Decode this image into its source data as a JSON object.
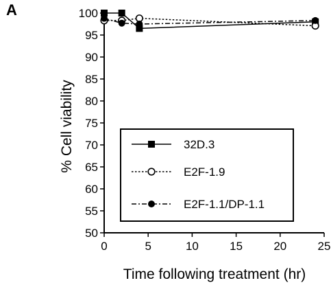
{
  "panel_label": "A",
  "chart_data": {
    "type": "line",
    "title": "",
    "xlabel": "Time following treatment (hr)",
    "ylabel": "% Cell viability",
    "xlim": [
      0,
      25
    ],
    "ylim": [
      50,
      100
    ],
    "xticks": [
      0,
      5,
      10,
      15,
      20,
      25
    ],
    "yticks": [
      50,
      55,
      60,
      65,
      70,
      75,
      80,
      85,
      90,
      95,
      100
    ],
    "grid": false,
    "legend_position": "lower-center",
    "series": [
      {
        "name": "32D.3",
        "marker": "filled-square",
        "line_style": "solid",
        "x": [
          0,
          2,
          4,
          24
        ],
        "y": [
          100,
          100,
          96.5,
          98
        ]
      },
      {
        "name": "E2F-1.9",
        "marker": "open-circle",
        "line_style": "dotted",
        "x": [
          0,
          2,
          4,
          24
        ],
        "y": [
          98.3,
          98.3,
          98.8,
          97.1
        ]
      },
      {
        "name": "E2F-1.1/DP-1.1",
        "marker": "filled-circle",
        "line_style": "dash-dot",
        "x": [
          0,
          2,
          4,
          24
        ],
        "y": [
          98.8,
          97.7,
          97.5,
          98.3
        ]
      }
    ]
  }
}
